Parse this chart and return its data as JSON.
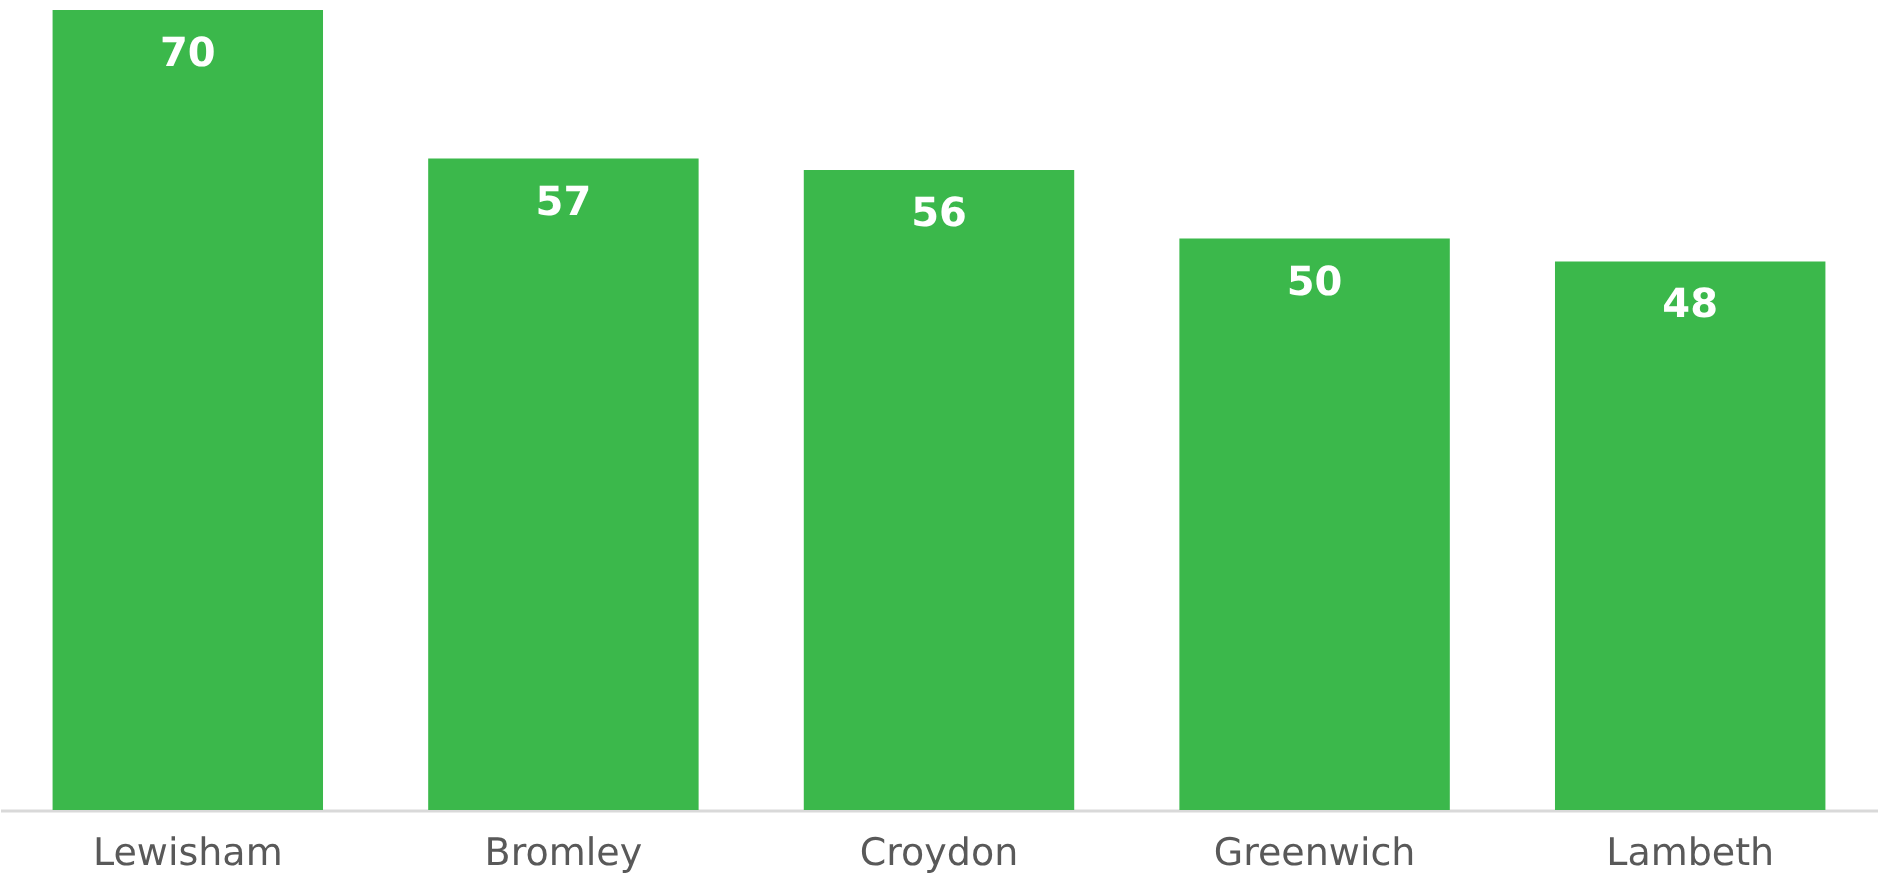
{
  "chart_data": {
    "type": "bar",
    "categories": [
      "Lewisham",
      "Bromley",
      "Croydon",
      "Greenwich",
      "Lambeth"
    ],
    "values": [
      70,
      57,
      56,
      50,
      48
    ],
    "color": "#3bb84b",
    "data_labels": true
  }
}
